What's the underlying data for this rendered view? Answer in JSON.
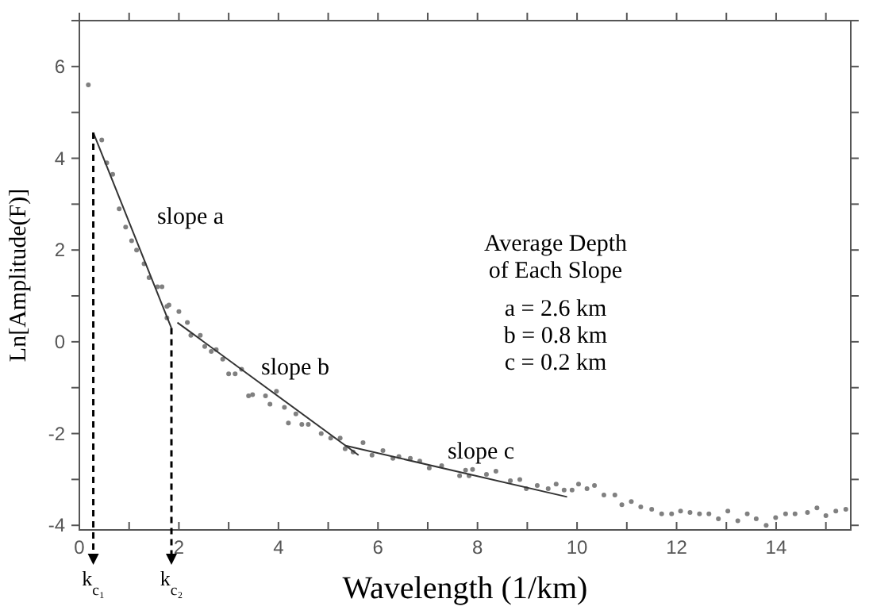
{
  "chart_data": {
    "type": "scatter",
    "xlabel": "Wavelength (1/km)",
    "ylabel": "Ln[Amplitude(F)]",
    "xlim": [
      0,
      15.5
    ],
    "ylim": [
      -4.1,
      7
    ],
    "xticks": [
      0,
      {
        "value": 1,
        "label": null
      },
      2,
      {
        "value": 3,
        "label": null
      },
      4,
      {
        "value": 5,
        "label": null
      },
      6,
      {
        "value": 7,
        "label": null
      },
      8,
      {
        "value": 9,
        "label": null
      },
      10,
      {
        "value": 11,
        "label": null
      },
      12,
      {
        "value": 13,
        "label": null
      },
      14,
      {
        "value": 15,
        "label": null
      }
    ],
    "yticks": [
      -4,
      {
        "value": -3,
        "label": null
      },
      -2,
      {
        "value": -1,
        "label": null
      },
      0,
      {
        "value": 1,
        "label": null
      },
      2,
      {
        "value": 3,
        "label": null
      },
      4,
      {
        "value": 5,
        "label": null
      },
      6,
      {
        "value": 7,
        "label": null
      }
    ],
    "grid": false,
    "series": [
      {
        "color": "#808080",
        "marker": "circle",
        "x": [
          0.18,
          0.45,
          0.55,
          0.67,
          0.8,
          0.93,
          1.05,
          1.15,
          1.3,
          1.4,
          1.57,
          1.66,
          1.76,
          1.8,
          2.0,
          1.76,
          2.17,
          2.24,
          2.43,
          2.52,
          2.65,
          2.75,
          2.88,
          3.0,
          3.13,
          3.26,
          3.4,
          3.48,
          3.74,
          3.83,
          3.96,
          4.12,
          4.2,
          4.35,
          4.47,
          4.6,
          4.86,
          5.05,
          5.24,
          5.34,
          5.5,
          5.7,
          5.88,
          6.1,
          6.3,
          6.42,
          6.65,
          6.84,
          7.03,
          7.28,
          7.64,
          7.76,
          7.83,
          7.9,
          8.18,
          8.37,
          8.66,
          8.85,
          8.98,
          9.2,
          9.42,
          9.58,
          9.74,
          9.9,
          10.03,
          10.2,
          10.35,
          10.54,
          10.76,
          10.9,
          11.09,
          11.28,
          11.5,
          11.7,
          11.9,
          12.08,
          12.27,
          12.46,
          12.65,
          12.84,
          13.03,
          13.23,
          13.42,
          13.6,
          13.8,
          13.99,
          14.19,
          14.38,
          14.63,
          14.82,
          15.0,
          15.2,
          15.4
        ],
        "values": [
          5.6,
          4.4,
          3.9,
          3.65,
          2.9,
          2.5,
          2.2,
          2.0,
          1.7,
          1.4,
          1.2,
          1.2,
          0.77,
          0.8,
          0.66,
          0.52,
          0.42,
          0.14,
          0.14,
          -0.1,
          -0.21,
          -0.17,
          -0.38,
          -0.7,
          -0.7,
          -0.6,
          -1.18,
          -1.15,
          -1.18,
          -1.36,
          -1.08,
          -1.43,
          -1.77,
          -1.57,
          -1.8,
          -1.8,
          -2.0,
          -2.1,
          -2.1,
          -2.33,
          -2.4,
          -2.2,
          -2.47,
          -2.37,
          -2.54,
          -2.5,
          -2.54,
          -2.6,
          -2.75,
          -2.7,
          -2.92,
          -2.8,
          -2.92,
          -2.78,
          -2.89,
          -2.82,
          -3.03,
          -3.0,
          -3.2,
          -3.13,
          -3.2,
          -3.1,
          -3.23,
          -3.23,
          -3.1,
          -3.2,
          -3.13,
          -3.34,
          -3.34,
          -3.55,
          -3.48,
          -3.6,
          -3.65,
          -3.75,
          -3.75,
          -3.69,
          -3.72,
          -3.75,
          -3.75,
          -3.86,
          -3.69,
          -3.9,
          -3.75,
          -3.86,
          -4.0,
          -3.83,
          -3.75,
          -3.75,
          -3.72,
          -3.62,
          -3.79,
          -3.69,
          -3.65
        ]
      },
      {
        "type": "line",
        "color": "#333333",
        "marker": "none",
        "line_style": "solid",
        "x": [
          0.28,
          1.85
        ],
        "values": [
          4.56,
          0.3
        ]
      },
      {
        "type": "line",
        "color": "#333333",
        "marker": "none",
        "line_style": "solid",
        "x": [
          1.97,
          5.61
        ],
        "values": [
          0.42,
          -2.47
        ]
      },
      {
        "type": "line",
        "color": "#333333",
        "marker": "none",
        "line_style": "solid",
        "x": [
          5.33,
          9.8
        ],
        "values": [
          -2.26,
          -3.38
        ]
      }
    ],
    "ref_lines": [
      {
        "axis": "x",
        "value": 0.28,
        "label": "k$_{c₁}$",
        "color": "#000000",
        "line_style": "dashed"
      },
      {
        "axis": "x",
        "value": 1.85,
        "label": "k$_{c₂}$",
        "color": "#000000",
        "line_style": "dashed"
      }
    ],
    "annotations": [
      "slope a",
      "slope b",
      "slope c",
      "Average Depth",
      "of Each Slope",
      "a = 2.6 km",
      "b = 0.8 km",
      "c = 0.2 km"
    ]
  }
}
